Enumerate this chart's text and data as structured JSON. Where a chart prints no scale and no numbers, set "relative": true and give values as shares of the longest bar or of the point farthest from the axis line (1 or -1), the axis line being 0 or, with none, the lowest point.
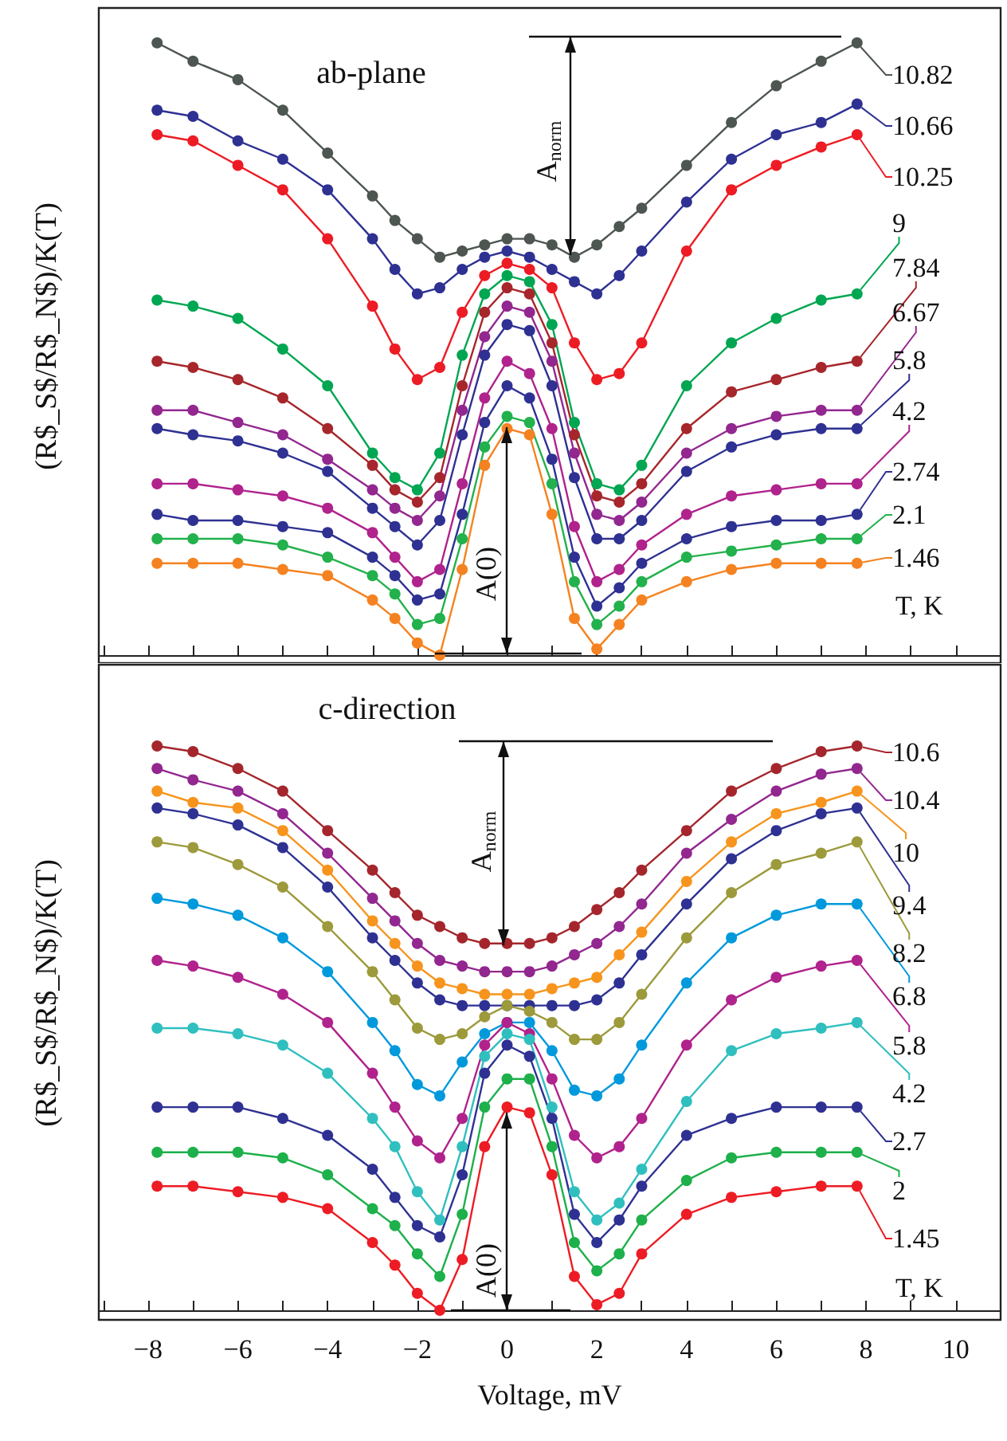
{
  "chart_data": [
    {
      "type": "line",
      "relative": true,
      "ylabel": "(R$_S$/R$_N$)/K(T)",
      "annotations": [
        "ab-plane",
        "A$_{norm}$",
        "A(0)",
        "T, K"
      ],
      "x": [
        -7.8,
        -7,
        -6,
        -5,
        -4,
        -3,
        -2.5,
        -2,
        -1.5,
        -1,
        -0.5,
        0,
        0.5,
        1,
        1.5,
        2,
        2.5,
        3,
        4,
        5,
        6,
        7,
        7.8
      ],
      "xlim": [
        -9.1,
        11
      ],
      "xticks": [
        {
          "value": -9,
          "label": null
        },
        -8,
        {
          "value": -7,
          "label": null
        },
        -6,
        {
          "value": -5,
          "label": null
        },
        -4,
        {
          "value": -3,
          "label": null
        },
        -2,
        {
          "value": -1,
          "label": null
        },
        0,
        {
          "value": 1,
          "label": null
        },
        2,
        {
          "value": 3,
          "label": null
        },
        4,
        {
          "value": 5,
          "label": null
        },
        6,
        {
          "value": 7,
          "label": null
        },
        8,
        {
          "value": 9,
          "label": null
        },
        10
      ],
      "tick_labels": false,
      "marker": "circle",
      "line_style": "solid",
      "legend": "right",
      "series": [
        {
          "name": "10.82",
          "color": "#4d5650",
          "values": [
            1.0,
            0.97,
            0.94,
            0.89,
            0.82,
            0.75,
            0.71,
            0.68,
            0.65,
            0.66,
            0.67,
            0.68,
            0.68,
            0.67,
            0.65,
            0.67,
            0.7,
            0.73,
            0.8,
            0.87,
            0.93,
            0.97,
            1.0
          ]
        },
        {
          "name": "10.66",
          "color": "#2e3192",
          "values": [
            0.89,
            0.88,
            0.84,
            0.81,
            0.76,
            0.68,
            0.63,
            0.59,
            0.6,
            0.63,
            0.65,
            0.66,
            0.65,
            0.63,
            0.61,
            0.59,
            0.62,
            0.66,
            0.74,
            0.81,
            0.85,
            0.87,
            0.9
          ]
        },
        {
          "name": "10.25",
          "color": "#ed1c24",
          "values": [
            0.85,
            0.84,
            0.8,
            0.76,
            0.68,
            0.57,
            0.5,
            0.45,
            0.47,
            0.56,
            0.62,
            0.64,
            0.63,
            0.6,
            0.51,
            0.45,
            0.46,
            0.51,
            0.66,
            0.76,
            0.8,
            0.83,
            0.85
          ]
        },
        {
          "name": "9",
          "color": "#00a651",
          "values": [
            0.58,
            0.57,
            0.55,
            0.5,
            0.44,
            0.33,
            0.29,
            0.27,
            0.33,
            0.49,
            0.59,
            0.62,
            0.61,
            0.54,
            0.38,
            0.28,
            0.27,
            0.31,
            0.44,
            0.51,
            0.55,
            0.58,
            0.59
          ]
        },
        {
          "name": "7.84",
          "color": "#a6262b",
          "values": [
            0.48,
            0.47,
            0.45,
            0.42,
            0.37,
            0.31,
            0.27,
            0.25,
            0.29,
            0.44,
            0.56,
            0.6,
            0.59,
            0.51,
            0.36,
            0.26,
            0.25,
            0.28,
            0.37,
            0.43,
            0.45,
            0.47,
            0.48
          ]
        },
        {
          "name": "6.67",
          "color": "#92278f",
          "values": [
            0.4,
            0.4,
            0.38,
            0.36,
            0.32,
            0.27,
            0.24,
            0.22,
            0.26,
            0.4,
            0.52,
            0.57,
            0.56,
            0.48,
            0.33,
            0.23,
            0.22,
            0.25,
            0.33,
            0.37,
            0.39,
            0.4,
            0.4
          ]
        },
        {
          "name": "5.8",
          "color": "#2e3192",
          "values": [
            0.37,
            0.36,
            0.35,
            0.33,
            0.3,
            0.24,
            0.21,
            0.18,
            0.22,
            0.36,
            0.49,
            0.54,
            0.53,
            0.44,
            0.29,
            0.19,
            0.19,
            0.22,
            0.3,
            0.34,
            0.36,
            0.37,
            0.37
          ]
        },
        {
          "name": "4.2",
          "color": "#b0228c",
          "values": [
            0.28,
            0.28,
            0.27,
            0.26,
            0.24,
            0.2,
            0.16,
            0.12,
            0.14,
            0.28,
            0.42,
            0.48,
            0.46,
            0.37,
            0.21,
            0.12,
            0.14,
            0.18,
            0.23,
            0.26,
            0.27,
            0.28,
            0.28
          ]
        },
        {
          "name": "2.74",
          "color": "#2e3192",
          "values": [
            0.23,
            0.22,
            0.22,
            0.21,
            0.2,
            0.16,
            0.13,
            0.09,
            0.1,
            0.23,
            0.38,
            0.44,
            0.42,
            0.32,
            0.16,
            0.08,
            0.11,
            0.15,
            0.19,
            0.21,
            0.22,
            0.22,
            0.23
          ]
        },
        {
          "name": "2.1",
          "color": "#22b14c",
          "values": [
            0.19,
            0.19,
            0.19,
            0.18,
            0.16,
            0.13,
            0.1,
            0.05,
            0.06,
            0.19,
            0.34,
            0.39,
            0.38,
            0.28,
            0.12,
            0.05,
            0.08,
            0.12,
            0.16,
            0.17,
            0.18,
            0.19,
            0.19
          ]
        },
        {
          "name": "1.46",
          "color": "#f58220",
          "values": [
            0.15,
            0.15,
            0.15,
            0.14,
            0.13,
            0.09,
            0.06,
            0.02,
            0.0,
            0.14,
            0.31,
            0.37,
            0.36,
            0.23,
            0.06,
            0.01,
            0.05,
            0.09,
            0.12,
            0.14,
            0.15,
            0.15,
            0.15
          ]
        }
      ]
    },
    {
      "type": "line",
      "relative": true,
      "xlabel": "Voltage, mV",
      "ylabel": "(R$_S$/R$_N$)/K(T)",
      "annotations": [
        "c-direction",
        "A$_{norm}$",
        "A(0)",
        "T, K"
      ],
      "x": [
        -7.8,
        -7,
        -6,
        -5,
        -4,
        -3,
        -2.5,
        -2,
        -1.5,
        -1,
        -0.5,
        0,
        0.5,
        1,
        1.5,
        2,
        2.5,
        3,
        4,
        5,
        6,
        7,
        7.8
      ],
      "xlim": [
        -9.1,
        11
      ],
      "xticks": [
        {
          "value": -9,
          "label": null
        },
        -8,
        {
          "value": -7,
          "label": null
        },
        -6,
        {
          "value": -5,
          "label": null
        },
        -4,
        {
          "value": -3,
          "label": null
        },
        -2,
        {
          "value": -1,
          "label": null
        },
        0,
        {
          "value": 1,
          "label": null
        },
        2,
        {
          "value": 3,
          "label": null
        },
        4,
        {
          "value": 5,
          "label": null
        },
        6,
        {
          "value": 7,
          "label": null
        },
        8,
        {
          "value": 9,
          "label": null
        },
        10
      ],
      "tick_labels": "x",
      "marker": "circle",
      "line_style": "solid",
      "legend": "right",
      "series": [
        {
          "name": "10.6",
          "color": "#a4262c",
          "values": [
            1.0,
            0.99,
            0.96,
            0.92,
            0.85,
            0.78,
            0.74,
            0.7,
            0.68,
            0.66,
            0.65,
            0.65,
            0.65,
            0.66,
            0.68,
            0.71,
            0.74,
            0.78,
            0.85,
            0.92,
            0.96,
            0.99,
            1.0
          ]
        },
        {
          "name": "10.4",
          "color": "#92278f",
          "values": [
            0.96,
            0.94,
            0.92,
            0.88,
            0.81,
            0.73,
            0.69,
            0.65,
            0.62,
            0.61,
            0.6,
            0.6,
            0.6,
            0.61,
            0.63,
            0.65,
            0.68,
            0.72,
            0.81,
            0.87,
            0.92,
            0.95,
            0.96
          ]
        },
        {
          "name": "10",
          "color": "#f7941d",
          "values": [
            0.92,
            0.9,
            0.89,
            0.85,
            0.78,
            0.69,
            0.65,
            0.61,
            0.58,
            0.57,
            0.56,
            0.56,
            0.56,
            0.57,
            0.58,
            0.59,
            0.63,
            0.67,
            0.76,
            0.83,
            0.88,
            0.9,
            0.92
          ]
        },
        {
          "name": "9.4",
          "color": "#2e3192",
          "values": [
            0.89,
            0.88,
            0.86,
            0.82,
            0.75,
            0.66,
            0.62,
            0.58,
            0.55,
            0.54,
            0.54,
            0.54,
            0.54,
            0.54,
            0.54,
            0.55,
            0.58,
            0.63,
            0.72,
            0.8,
            0.85,
            0.88,
            0.89
          ]
        },
        {
          "name": "8.2",
          "color": "#9c9a3b",
          "values": [
            0.83,
            0.82,
            0.79,
            0.75,
            0.68,
            0.6,
            0.55,
            0.5,
            0.48,
            0.49,
            0.52,
            0.54,
            0.53,
            0.51,
            0.48,
            0.48,
            0.51,
            0.56,
            0.66,
            0.74,
            0.79,
            0.81,
            0.83
          ]
        },
        {
          "name": "6.8",
          "color": "#0099dc",
          "values": [
            0.73,
            0.72,
            0.7,
            0.66,
            0.6,
            0.51,
            0.46,
            0.4,
            0.38,
            0.44,
            0.49,
            0.51,
            0.51,
            0.46,
            0.39,
            0.38,
            0.41,
            0.47,
            0.58,
            0.66,
            0.7,
            0.72,
            0.72
          ]
        },
        {
          "name": "5.8",
          "color": "#b0228c",
          "values": [
            0.62,
            0.61,
            0.59,
            0.56,
            0.51,
            0.42,
            0.36,
            0.3,
            0.27,
            0.34,
            0.47,
            0.51,
            0.49,
            0.41,
            0.31,
            0.27,
            0.29,
            0.34,
            0.47,
            0.55,
            0.59,
            0.61,
            0.62
          ]
        },
        {
          "name": "4.2",
          "color": "#30bfbf",
          "values": [
            0.5,
            0.5,
            0.49,
            0.47,
            0.42,
            0.34,
            0.29,
            0.21,
            0.16,
            0.29,
            0.45,
            0.49,
            0.48,
            0.36,
            0.21,
            0.16,
            0.19,
            0.25,
            0.37,
            0.46,
            0.49,
            0.5,
            0.51
          ]
        },
        {
          "name": "2.7",
          "color": "#2e3192",
          "values": [
            0.36,
            0.36,
            0.36,
            0.34,
            0.31,
            0.25,
            0.2,
            0.15,
            0.13,
            0.24,
            0.42,
            0.47,
            0.45,
            0.34,
            0.17,
            0.12,
            0.16,
            0.22,
            0.31,
            0.34,
            0.36,
            0.36,
            0.36
          ]
        },
        {
          "name": "2",
          "color": "#1db04b",
          "values": [
            0.28,
            0.28,
            0.28,
            0.27,
            0.24,
            0.18,
            0.15,
            0.1,
            0.06,
            0.17,
            0.36,
            0.41,
            0.41,
            0.29,
            0.12,
            0.07,
            0.1,
            0.16,
            0.23,
            0.27,
            0.28,
            0.28,
            0.28
          ]
        },
        {
          "name": "1.45",
          "color": "#ed1c24",
          "values": [
            0.22,
            0.22,
            0.21,
            0.2,
            0.18,
            0.12,
            0.08,
            0.03,
            0.0,
            0.09,
            0.29,
            0.36,
            0.35,
            0.24,
            0.06,
            0.01,
            0.03,
            0.1,
            0.17,
            0.2,
            0.21,
            0.22,
            0.22
          ]
        }
      ]
    }
  ]
}
